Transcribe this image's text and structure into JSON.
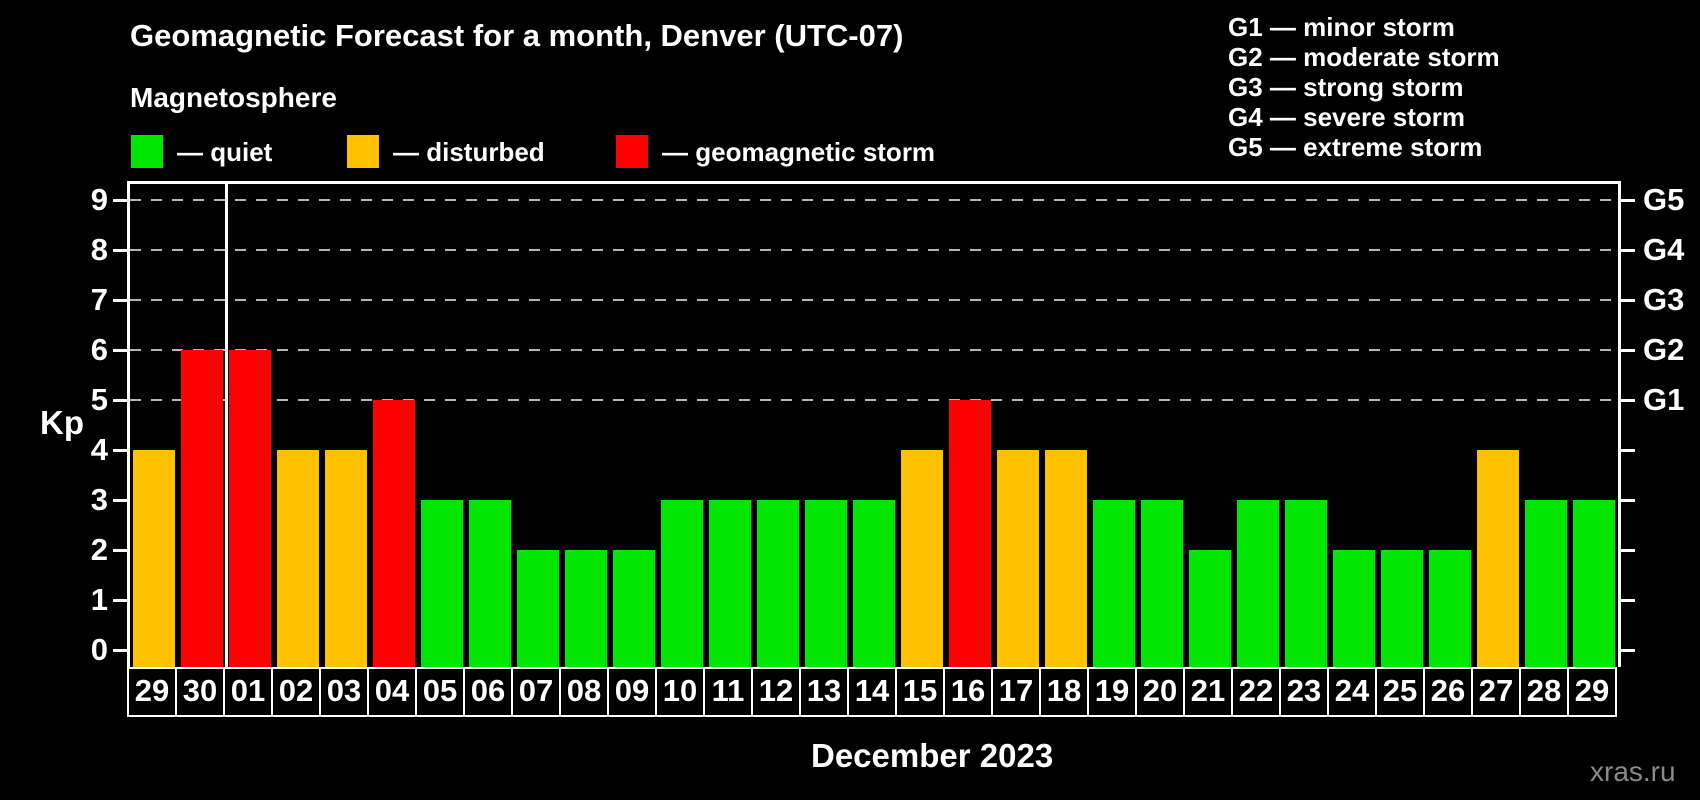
{
  "title": "Geomagnetic Forecast for a month, Denver (UTC-07)",
  "subtitle": "Magnetosphere",
  "legend": {
    "items": [
      {
        "label": "— quiet",
        "status": "quiet",
        "color": "#00e600"
      },
      {
        "label": "— disturbed",
        "status": "disturbed",
        "color": "#ffc000"
      },
      {
        "label": "— geomagnetic storm",
        "status": "storm",
        "color": "#ff0000"
      }
    ]
  },
  "g_legend": [
    "G1 — minor storm",
    "G2 — moderate storm",
    "G3 — strong storm",
    "G4 — severe storm",
    "G5 — extreme storm"
  ],
  "watermark": "xras.ru",
  "chart_data": {
    "type": "bar",
    "title": "Geomagnetic Forecast for a month, Denver (UTC-07)",
    "xlabel": "December 2023",
    "ylabel": "Kp",
    "ylim": [
      0,
      9
    ],
    "y_ticks": [
      0,
      1,
      2,
      3,
      4,
      5,
      6,
      7,
      8,
      9
    ],
    "gridlines_kp": [
      5,
      6,
      7,
      8,
      9
    ],
    "grid": "horizontal dashed at storm levels only",
    "legend_position": "top",
    "right_axis_labels": [
      {
        "label": "G1",
        "kp": 5
      },
      {
        "label": "G2",
        "kp": 6
      },
      {
        "label": "G3",
        "kp": 7
      },
      {
        "label": "G4",
        "kp": 8
      },
      {
        "label": "G5",
        "kp": 9
      }
    ],
    "categories": [
      "29",
      "30",
      "01",
      "02",
      "03",
      "04",
      "05",
      "06",
      "07",
      "08",
      "09",
      "10",
      "11",
      "12",
      "13",
      "14",
      "15",
      "16",
      "17",
      "18",
      "19",
      "20",
      "21",
      "22",
      "23",
      "24",
      "25",
      "26",
      "27",
      "28",
      "29"
    ],
    "values": [
      4,
      6,
      6,
      4,
      4,
      5,
      3,
      3,
      2,
      2,
      2,
      3,
      3,
      3,
      3,
      3,
      4,
      5,
      4,
      4,
      3,
      3,
      2,
      3,
      3,
      2,
      2,
      2,
      4,
      3,
      3
    ],
    "statuses": [
      "disturbed",
      "storm",
      "storm",
      "disturbed",
      "disturbed",
      "storm",
      "quiet",
      "quiet",
      "quiet",
      "quiet",
      "quiet",
      "quiet",
      "quiet",
      "quiet",
      "quiet",
      "quiet",
      "disturbed",
      "storm",
      "disturbed",
      "disturbed",
      "quiet",
      "quiet",
      "quiet",
      "quiet",
      "quiet",
      "quiet",
      "quiet",
      "quiet",
      "disturbed",
      "quiet",
      "quiet"
    ],
    "colors": {
      "quiet": "#00e600",
      "disturbed": "#ffc000",
      "storm": "#ff0000"
    },
    "month_separator_after_index": 1
  }
}
